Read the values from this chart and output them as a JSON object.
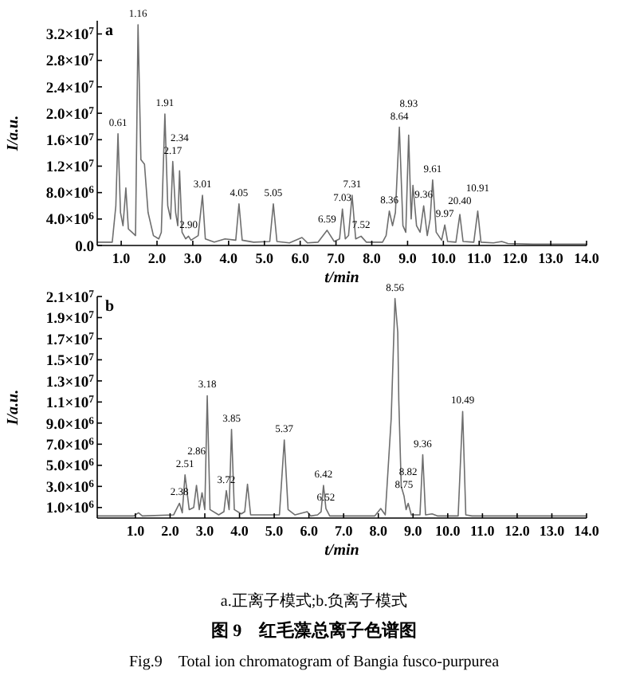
{
  "chart_data": [
    {
      "type": "line",
      "title": "a",
      "xlabel": "t/min",
      "ylabel": "I/a.u.",
      "xlim": [
        0.33,
        14
      ],
      "ylim": [
        0,
        34000000.0
      ],
      "xticks": [
        {
          "value": 1,
          "label": "1.0"
        },
        {
          "value": 2,
          "label": "2.0"
        },
        {
          "value": 3,
          "label": "3.0"
        },
        {
          "value": 4,
          "label": "4.0"
        },
        {
          "value": 5,
          "label": "5.0"
        },
        {
          "value": 6,
          "label": "6.0"
        },
        {
          "value": 7,
          "label": "7.0"
        },
        {
          "value": 8,
          "label": "8.0"
        },
        {
          "value": 9,
          "label": "9.0"
        },
        {
          "value": 10,
          "label": "10.0"
        },
        {
          "value": 11,
          "label": "11.0"
        },
        {
          "value": 12,
          "label": "12.0"
        },
        {
          "value": 13,
          "label": "13.0"
        },
        {
          "value": 14,
          "label": "14.0"
        }
      ],
      "yticks": [
        {
          "value": 0,
          "label": "0.0"
        },
        {
          "value": 4000000.0,
          "label": "4.0×10$^{6}$"
        },
        {
          "value": 8000000.0,
          "label": "8.0×10$^{6}$"
        },
        {
          "value": 12000000.0,
          "label": "1.2×10$^{7}$"
        },
        {
          "value": 16000000.0,
          "label": "1.6×10$^{7}$"
        },
        {
          "value": 20000000.0,
          "label": "2.0×10$^{7}$"
        },
        {
          "value": 24000000.0,
          "label": "2.4×10$^{7}$"
        },
        {
          "value": 28000000.0,
          "label": "2.8×10$^{7}$"
        },
        {
          "value": 32000000.0,
          "label": "3.2×10$^{7}$"
        }
      ],
      "series": [
        {
          "color": "#6e6e6e",
          "x": [
            0.33,
            0.75,
            0.85,
            0.91,
            0.98,
            1.05,
            1.13,
            1.2,
            1.3,
            1.4,
            1.47,
            1.55,
            1.65,
            1.75,
            1.9,
            2.05,
            2.12,
            2.22,
            2.3,
            2.38,
            2.44,
            2.52,
            2.58,
            2.63,
            2.7,
            2.8,
            2.88,
            2.95,
            3.15,
            3.27,
            3.35,
            3.6,
            3.9,
            4.2,
            4.29,
            4.38,
            4.7,
            5.15,
            5.25,
            5.35,
            5.7,
            6.05,
            6.2,
            6.5,
            6.75,
            6.95,
            7.1,
            7.18,
            7.26,
            7.35,
            7.45,
            7.55,
            7.7,
            7.85,
            8.3,
            8.4,
            8.49,
            8.58,
            8.66,
            8.77,
            8.87,
            8.95,
            9.03,
            9.1,
            9.15,
            9.25,
            9.35,
            9.45,
            9.55,
            9.63,
            9.7,
            9.8,
            9.95,
            10.04,
            10.12,
            10.35,
            10.46,
            10.55,
            10.85,
            10.96,
            11.05,
            11.4,
            11.63,
            11.8,
            12.5,
            14.0
          ],
          "values": [
            500000.0,
            500000.0,
            6000000.0,
            16900000.0,
            5000000.0,
            3000000.0,
            8700000.0,
            2500000.0,
            2000000.0,
            1500000.0,
            33400000.0,
            13000000.0,
            12300000.0,
            5000000.0,
            1500000.0,
            1000000.0,
            2000000.0,
            19900000.0,
            6000000.0,
            4000000.0,
            12700000.0,
            5000000.0,
            3000000.0,
            11300000.0,
            2000000.0,
            1000000.0,
            1400000.0,
            800000.0,
            1500000.0,
            7600000.0,
            1000000.0,
            500000.0,
            1000000.0,
            800000.0,
            6300000.0,
            800000.0,
            500000.0,
            600000.0,
            6300000.0,
            600000.0,
            400000.0,
            1200000.0,
            400000.0,
            500000.0,
            2300000.0,
            600000.0,
            1000000.0,
            5500000.0,
            1000000.0,
            1500000.0,
            7600000.0,
            1000000.0,
            1400000.0,
            500000.0,
            500000.0,
            1500000.0,
            5200000.0,
            3000000.0,
            5000000.0,
            17900000.0,
            3000000.0,
            2000000.0,
            16700000.0,
            4000000.0,
            9100000.0,
            3000000.0,
            2000000.0,
            6000000.0,
            1500000.0,
            4000000.0,
            9900000.0,
            2000000.0,
            800000.0,
            3100000.0,
            600000.0,
            500000.0,
            4700000.0,
            600000.0,
            500000.0,
            5200000.0,
            500000.0,
            400000.0,
            600000.0,
            300000.0,
            200000.0,
            200000.0
          ]
        }
      ],
      "annotations": [
        {
          "text": "0.61",
          "x": 0.91,
          "y": 16900000.0
        },
        {
          "text": "1.16",
          "x": 1.47,
          "y": 33400000.0
        },
        {
          "text": "1.91",
          "x": 2.22,
          "y": 19900000.0
        },
        {
          "text": "2.17",
          "x": 2.44,
          "y": 12700000.0
        },
        {
          "text": "2.34",
          "x": 2.63,
          "y": 11300000.0
        },
        {
          "text": "2.90",
          "x": 2.88,
          "y": 1400000.0
        },
        {
          "text": "3.01",
          "x": 3.27,
          "y": 7600000.0
        },
        {
          "text": "4.05",
          "x": 4.29,
          "y": 6300000.0
        },
        {
          "text": "5.05",
          "x": 5.25,
          "y": 6300000.0
        },
        {
          "text": "6.59",
          "x": 6.75,
          "y": 2300000.0
        },
        {
          "text": "7.03",
          "x": 7.18,
          "y": 5500000.0
        },
        {
          "text": "7.31",
          "x": 7.45,
          "y": 7600000.0
        },
        {
          "text": "7.52",
          "x": 7.7,
          "y": 1400000.0
        },
        {
          "text": "8.36",
          "x": 8.49,
          "y": 5200000.0
        },
        {
          "text": "8.64",
          "x": 8.77,
          "y": 17900000.0
        },
        {
          "text": "8.93",
          "x": 9.03,
          "y": 16700000.0
        },
        {
          "text": "9.36",
          "x": 9.45,
          "y": 6000000.0
        },
        {
          "text": "9.61",
          "x": 9.7,
          "y": 9900000.0
        },
        {
          "text": "9.97",
          "x": 10.04,
          "y": 3100000.0
        },
        {
          "text": "20.40",
          "x": 10.46,
          "y": 4700000.0
        },
        {
          "text": "10.91",
          "x": 10.96,
          "y": 5200000.0
        }
      ]
    },
    {
      "type": "line",
      "title": "b",
      "xlabel": "t/min",
      "ylabel": "I/a.u.",
      "xlim": [
        -0.1,
        14
      ],
      "ylim": [
        0,
        21000000.0
      ],
      "xticks": [
        {
          "value": 1,
          "label": "1.0"
        },
        {
          "value": 2,
          "label": "2.0"
        },
        {
          "value": 3,
          "label": "3.0"
        },
        {
          "value": 4,
          "label": "4.0"
        },
        {
          "value": 5,
          "label": "5.0"
        },
        {
          "value": 6,
          "label": "6.0"
        },
        {
          "value": 7,
          "label": "7.0"
        },
        {
          "value": 8,
          "label": "8.0"
        },
        {
          "value": 9,
          "label": "9.0"
        },
        {
          "value": 10,
          "label": "10.0"
        },
        {
          "value": 11,
          "label": "11.0"
        },
        {
          "value": 12,
          "label": "12.0"
        },
        {
          "value": 13,
          "label": "13.0"
        },
        {
          "value": 14,
          "label": "14.0"
        }
      ],
      "yticks": [
        {
          "value": 1000000.0,
          "label": "1.0×10$^{6}$"
        },
        {
          "value": 3000000.0,
          "label": "3.0×10$^{6}$"
        },
        {
          "value": 5000000.0,
          "label": "5.0×10$^{6}$"
        },
        {
          "value": 7000000.0,
          "label": "7.0×10$^{6}$"
        },
        {
          "value": 9000000.0,
          "label": "9.0×10$^{6}$"
        },
        {
          "value": 11000000.0,
          "label": "1.1×10$^{7}$"
        },
        {
          "value": 13000000.0,
          "label": "1.3×10$^{7}$"
        },
        {
          "value": 15000000.0,
          "label": "1.5×10$^{7}$"
        },
        {
          "value": 17000000.0,
          "label": "1.7×10$^{7}$"
        },
        {
          "value": 19000000.0,
          "label": "1.9×10$^{7}$"
        },
        {
          "value": 21000000.0,
          "label": "2.1×10$^{7}$"
        }
      ],
      "series": [
        {
          "color": "#6e6e6e",
          "x": [
            -0.1,
            0.95,
            1.09,
            1.2,
            2.1,
            2.27,
            2.35,
            2.43,
            2.55,
            2.68,
            2.76,
            2.84,
            2.92,
            3.0,
            3.07,
            3.15,
            3.4,
            3.55,
            3.62,
            3.7,
            3.77,
            3.85,
            4.05,
            4.15,
            4.23,
            4.32,
            5.15,
            5.29,
            5.4,
            5.6,
            5.95,
            6.05,
            6.25,
            6.35,
            6.42,
            6.49,
            6.6,
            7.9,
            8.07,
            8.2,
            8.37,
            8.48,
            8.56,
            8.59,
            8.66,
            8.74,
            8.8,
            8.86,
            8.95,
            9.2,
            9.28,
            9.36,
            9.55,
            9.7,
            10.3,
            10.43,
            10.52,
            10.7,
            14.0
          ],
          "values": [
            200000.0,
            200000.0,
            500000.0,
            200000.0,
            300000.0,
            1400000.0,
            500000.0,
            4100000.0,
            800000.0,
            1000000.0,
            3100000.0,
            800000.0,
            2400000.0,
            800000.0,
            11600000.0,
            800000.0,
            300000.0,
            600000.0,
            2600000.0,
            800000.0,
            8400000.0,
            800000.0,
            400000.0,
            600000.0,
            3200000.0,
            300000.0,
            300000.0,
            7400000.0,
            800000.0,
            300000.0,
            600000.0,
            200000.0,
            300000.0,
            600000.0,
            3100000.0,
            900000.0,
            200000.0,
            200000.0,
            900000.0,
            300000.0,
            9400000.0,
            20800000.0,
            17600000.0,
            11100000.0,
            3000000.0,
            2100000.0,
            800000.0,
            1400000.0,
            300000.0,
            300000.0,
            6000000.0,
            300000.0,
            400000.0,
            200000.0,
            200000.0,
            10100000.0,
            300000.0,
            200000.0,
            200000.0
          ]
        }
      ],
      "annotations": [
        {
          "text": "2.38",
          "x": 2.27,
          "y": 1400000.0
        },
        {
          "text": "2.51",
          "x": 2.43,
          "y": 4100000.0
        },
        {
          "text": "2.86",
          "x": 2.76,
          "y": 3100000.0
        },
        {
          "text": "3.18",
          "x": 3.07,
          "y": 11600000.0
        },
        {
          "text": "3.72",
          "x": 3.62,
          "y": 2600000.0
        },
        {
          "text": "3.85",
          "x": 3.77,
          "y": 8400000.0
        },
        {
          "text": "5.37",
          "x": 5.29,
          "y": 7400000.0
        },
        {
          "text": "6.42",
          "x": 6.42,
          "y": 3100000.0
        },
        {
          "text": "6.52",
          "x": 6.49,
          "y": 900000.0
        },
        {
          "text": "8.56",
          "x": 8.48,
          "y": 20800000.0
        },
        {
          "text": "8.75",
          "x": 8.74,
          "y": 2100000.0
        },
        {
          "text": "8.82",
          "x": 8.86,
          "y": 1400000.0
        },
        {
          "text": "9.36",
          "x": 9.28,
          "y": 6000000.0
        },
        {
          "text": "10.49",
          "x": 10.43,
          "y": 10100000.0
        },
        "a.正离子模式;b.负离子模式",
        "图 9　红毛藻总离子色谱图",
        "Fig.9　Total ion chromatogram of Bangia fusco-purpurea"
      ]
    }
  ]
}
